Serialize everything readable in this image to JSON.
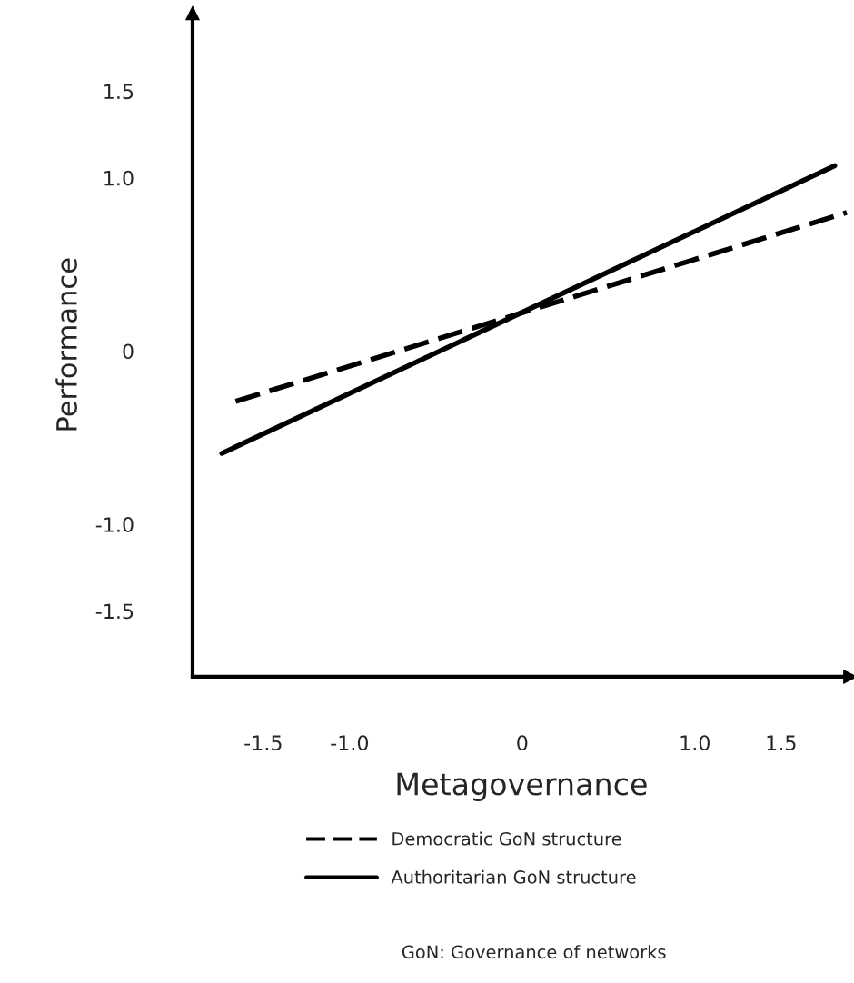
{
  "chart_data": {
    "type": "line",
    "xlabel": "Metagovernance",
    "ylabel": "Performance",
    "xlim": [
      -1.91,
      1.9
    ],
    "ylim": [
      -1.88,
      1.95
    ],
    "xticks": [
      -1.5,
      {
        "value": -1.0,
        "label": "-1.0"
      },
      0,
      {
        "value": 1.0,
        "label": "1.0"
      },
      1.5
    ],
    "yticks": [
      -1.5,
      {
        "value": -1.0,
        "label": "-1.0"
      },
      0,
      {
        "value": 1.0,
        "label": "1.0"
      },
      1.5
    ],
    "series": [
      {
        "name": "Democratic GoN structure",
        "color": "#000000",
        "line_style": "dashed",
        "x": [
          -1.66,
          1.88
        ],
        "values": [
          -0.29,
          0.8
        ]
      },
      {
        "name": "Authoritarian GoN structure",
        "color": "#000000",
        "line_style": "solid",
        "x": [
          -1.74,
          1.81
        ],
        "values": [
          -0.59,
          1.07
        ]
      }
    ],
    "legend": "bottom",
    "grid": false,
    "annotations": [
      "GoN: Governance of networks"
    ]
  }
}
